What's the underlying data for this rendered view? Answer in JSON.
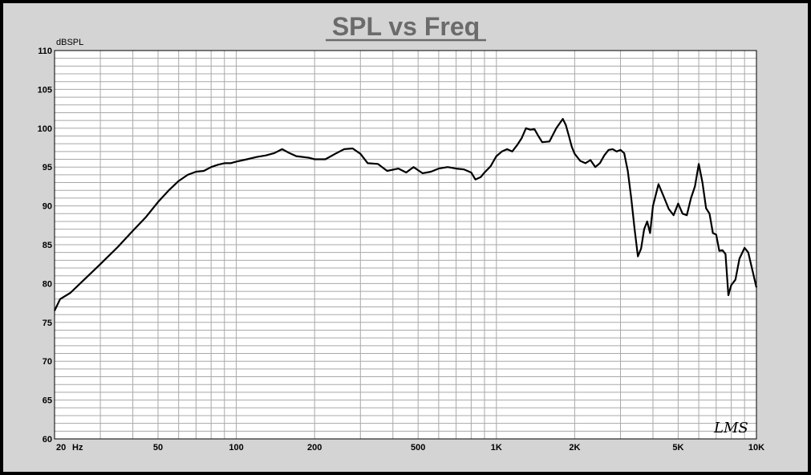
{
  "chart_data": {
    "type": "line",
    "title": "SPL vs Freq",
    "ylabel": "dBSPL",
    "x_unit_label": "Hz",
    "watermark": "LMS",
    "x_scale": "log",
    "xlim": [
      20,
      10000
    ],
    "ylim": [
      60,
      110
    ],
    "grid": true,
    "y_ticks": [
      60,
      65,
      70,
      75,
      80,
      85,
      90,
      95,
      100,
      105,
      110
    ],
    "x_tick_labels": [
      {
        "value": 20,
        "label": "20"
      },
      {
        "value": 50,
        "label": "50"
      },
      {
        "value": 100,
        "label": "100"
      },
      {
        "value": 200,
        "label": "200"
      },
      {
        "value": 500,
        "label": "500"
      },
      {
        "value": 1000,
        "label": "1K"
      },
      {
        "value": 2000,
        "label": "2K"
      },
      {
        "value": 5000,
        "label": "5K"
      },
      {
        "value": 10000,
        "label": "10K"
      }
    ],
    "series": [
      {
        "x": [
          20,
          21,
          23,
          26,
          30,
          35,
          40,
          45,
          50,
          55,
          60,
          65,
          70,
          75,
          80,
          85,
          90,
          95,
          100,
          110,
          120,
          130,
          140,
          150,
          160,
          170,
          180,
          190,
          200,
          220,
          240,
          260,
          280,
          300,
          320,
          350,
          380,
          420,
          450,
          480,
          500,
          520,
          540,
          560,
          600,
          650,
          700,
          750,
          800,
          830,
          870,
          900,
          950,
          1000,
          1050,
          1100,
          1150,
          1200,
          1250,
          1300,
          1350,
          1400,
          1450,
          1500,
          1600,
          1700,
          1800,
          1850,
          1900,
          1950,
          2000,
          2100,
          2200,
          2300,
          2400,
          2500,
          2600,
          2700,
          2800,
          2900,
          3000,
          3100,
          3200,
          3300,
          3400,
          3500,
          3600,
          3700,
          3800,
          3900,
          4000,
          4200,
          4400,
          4600,
          4800,
          5000,
          5200,
          5400,
          5600,
          5800,
          6000,
          6200,
          6400,
          6600,
          6800,
          7000,
          7200,
          7400,
          7600,
          7800,
          8000,
          8300,
          8600,
          9000,
          9300,
          9600,
          10000
        ],
        "y": [
          76.5,
          78,
          78.8,
          80.5,
          82.5,
          84.7,
          86.8,
          88.6,
          90.5,
          92,
          93.2,
          94,
          94.4,
          94.5,
          95,
          95.3,
          95.5,
          95.5,
          95.7,
          96,
          96.3,
          96.5,
          96.8,
          97.3,
          96.8,
          96.4,
          96.3,
          96.2,
          96,
          96,
          96.7,
          97.3,
          97.4,
          96.7,
          95.5,
          95.4,
          94.5,
          94.8,
          94.3,
          95,
          94.6,
          94.2,
          94.3,
          94.4,
          94.8,
          95,
          94.8,
          94.7,
          94.3,
          93.4,
          93.7,
          94.3,
          95.1,
          96.4,
          97,
          97.3,
          97,
          97.8,
          98.7,
          100,
          99.8,
          99.9,
          99,
          98.2,
          98.3,
          100,
          101.2,
          100.4,
          99,
          97.6,
          96.7,
          95.8,
          95.5,
          95.9,
          95,
          95.5,
          96.5,
          97.2,
          97.3,
          97,
          97.2,
          96.8,
          94.5,
          91,
          87,
          83.5,
          84.5,
          87,
          88,
          86.5,
          90,
          92.8,
          91.2,
          89.6,
          88.8,
          90.3,
          89,
          88.8,
          91,
          92.5,
          95.4,
          93,
          89.7,
          89,
          86.5,
          86.3,
          84.2,
          84.3,
          83.8,
          78.5,
          79.8,
          80.5,
          83.2,
          84.6,
          84,
          82,
          79.5
        ]
      }
    ]
  }
}
